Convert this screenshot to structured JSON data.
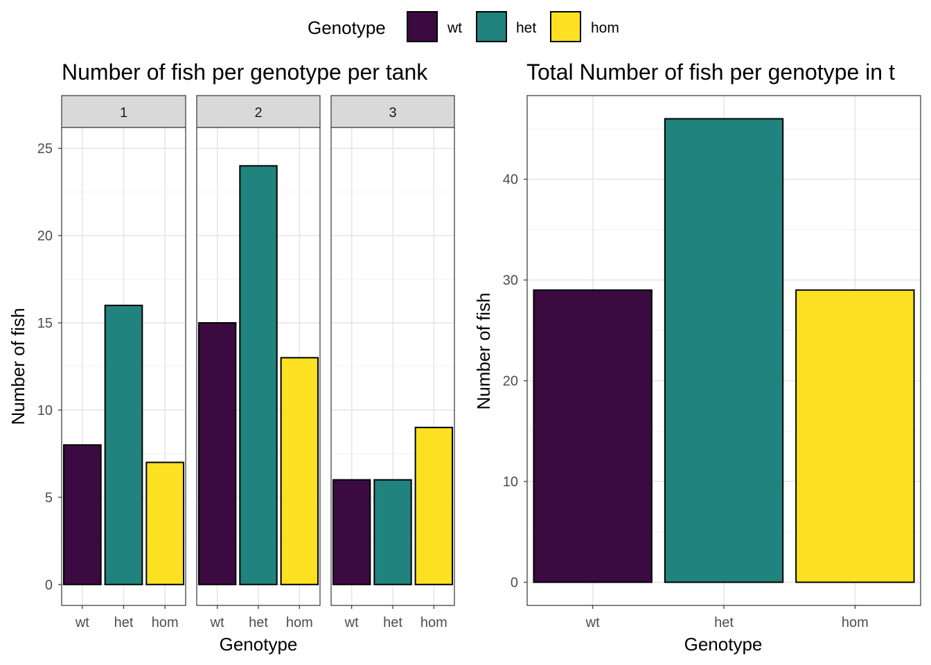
{
  "legend": {
    "title": "Genotype",
    "position": "top-center",
    "items": [
      {
        "label": "wt",
        "color": "#3a0a40"
      },
      {
        "label": "het",
        "color": "#21837e"
      },
      {
        "label": "hom",
        "color": "#fbe121"
      }
    ]
  },
  "chart_data": [
    {
      "type": "bar",
      "title": "Number of fish per genotype per tank",
      "xlabel": "Genotype",
      "ylabel": "Number of fish",
      "categories": [
        "wt",
        "het",
        "hom"
      ],
      "facets": [
        {
          "label": "1",
          "values": [
            8,
            16,
            7
          ]
        },
        {
          "label": "2",
          "values": [
            15,
            24,
            13
          ]
        },
        {
          "label": "3",
          "values": [
            6,
            6,
            9
          ]
        }
      ],
      "ylim": [
        -1.2,
        26.2
      ],
      "yticks": [
        0,
        5,
        10,
        15,
        20,
        25
      ],
      "grid": true
    },
    {
      "type": "bar",
      "title": "Total Number of fish per genotype in t",
      "xlabel": "Genotype",
      "ylabel": "Number of fish",
      "categories": [
        "wt",
        "het",
        "hom"
      ],
      "values": [
        29,
        46,
        29
      ],
      "ylim": [
        -2.3,
        48.3
      ],
      "yticks": [
        0,
        10,
        20,
        30,
        40
      ],
      "grid": true
    }
  ]
}
